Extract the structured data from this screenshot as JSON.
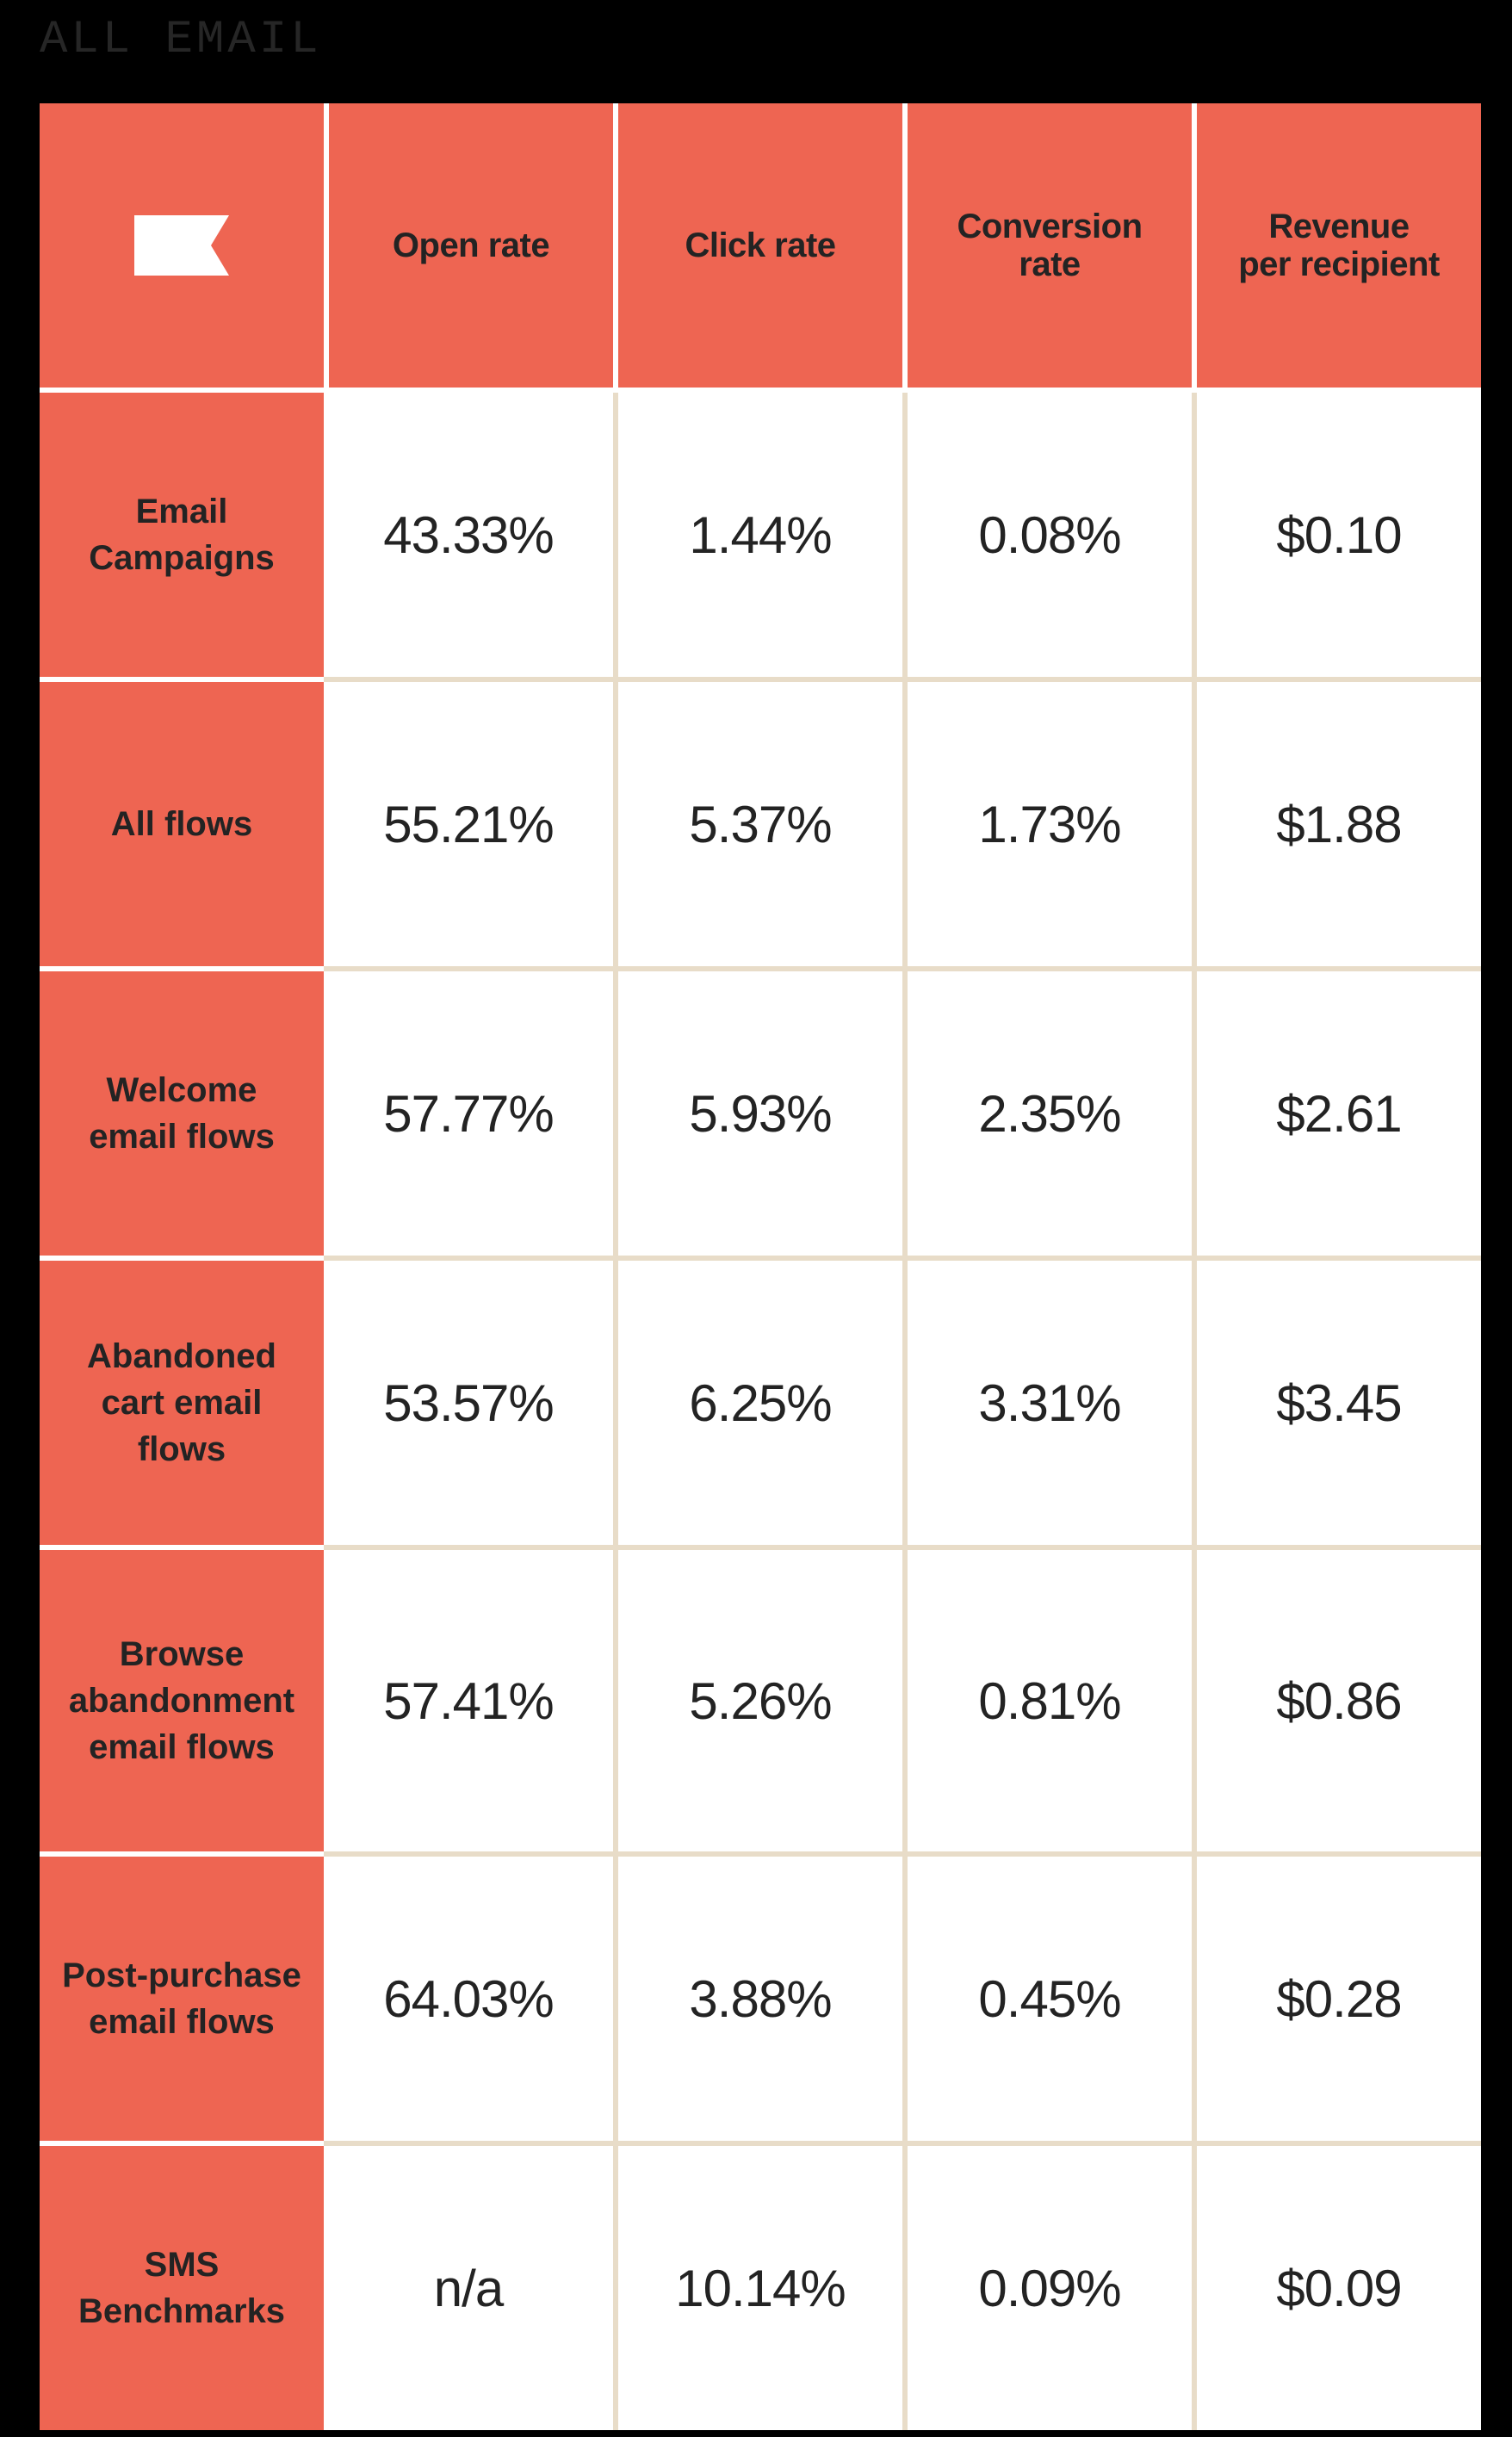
{
  "title": "ALL EMAIL",
  "colors": {
    "header_bg": "#EE6552",
    "cell_bg": "#FFFFFF",
    "grid_line": "#E8DCC8",
    "text": "#232323",
    "page_bg": "#000000"
  },
  "logo": {
    "icon": "flag-logo-icon"
  },
  "headers": [
    "Open rate",
    "Click rate",
    "Conversion rate",
    "Revenue per recipient"
  ],
  "header_lines": [
    [
      "Open rate"
    ],
    [
      "Click rate"
    ],
    [
      "Conversion",
      "rate"
    ],
    [
      "Revenue",
      "per recipient"
    ]
  ],
  "rows": [
    {
      "label": "Email Campaigns",
      "label_lines": [
        "Email",
        "Campaigns"
      ],
      "values": [
        "43.33%",
        "1.44%",
        "0.08%",
        "$0.10"
      ]
    },
    {
      "label": "All flows",
      "label_lines": [
        "All flows"
      ],
      "values": [
        "55.21%",
        "5.37%",
        "1.73%",
        "$1.88"
      ]
    },
    {
      "label": "Welcome email flows",
      "label_lines": [
        "Welcome",
        "email flows"
      ],
      "values": [
        "57.77%",
        "5.93%",
        "2.35%",
        "$2.61"
      ]
    },
    {
      "label": "Abandoned cart email flows",
      "label_lines": [
        "Abandoned",
        "cart email",
        "flows"
      ],
      "values": [
        "53.57%",
        "6.25%",
        "3.31%",
        "$3.45"
      ]
    },
    {
      "label": "Browse abandonment email flows",
      "label_lines": [
        "Browse",
        "abandonment",
        "email flows"
      ],
      "values": [
        "57.41%",
        "5.26%",
        "0.81%",
        "$0.86"
      ]
    },
    {
      "label": "Post-purchase email flows",
      "label_lines": [
        "Post-purchase",
        "email flows"
      ],
      "values": [
        "64.03%",
        "3.88%",
        "0.45%",
        "$0.28"
      ]
    },
    {
      "label": "SMS Benchmarks",
      "label_lines": [
        "SMS",
        "Benchmarks"
      ],
      "values": [
        "n/a",
        "10.14%",
        "0.09%",
        "$0.09"
      ]
    }
  ],
  "chart_data": {
    "type": "table",
    "title": "ALL EMAIL",
    "columns": [
      "Open rate",
      "Click rate",
      "Conversion rate",
      "Revenue per recipient"
    ],
    "rows": [
      {
        "name": "Email Campaigns",
        "open_rate": 43.33,
        "click_rate": 1.44,
        "conversion_rate": 0.08,
        "revenue_per_recipient": 0.1
      },
      {
        "name": "All flows",
        "open_rate": 55.21,
        "click_rate": 5.37,
        "conversion_rate": 1.73,
        "revenue_per_recipient": 1.88
      },
      {
        "name": "Welcome email flows",
        "open_rate": 57.77,
        "click_rate": 5.93,
        "conversion_rate": 2.35,
        "revenue_per_recipient": 2.61
      },
      {
        "name": "Abandoned cart email flows",
        "open_rate": 53.57,
        "click_rate": 6.25,
        "conversion_rate": 3.31,
        "revenue_per_recipient": 3.45
      },
      {
        "name": "Browse abandonment email flows",
        "open_rate": 57.41,
        "click_rate": 5.26,
        "conversion_rate": 0.81,
        "revenue_per_recipient": 0.86
      },
      {
        "name": "Post-purchase email flows",
        "open_rate": 64.03,
        "click_rate": 3.88,
        "conversion_rate": 0.45,
        "revenue_per_recipient": 0.28
      },
      {
        "name": "SMS Benchmarks",
        "open_rate": null,
        "click_rate": 10.14,
        "conversion_rate": 0.09,
        "revenue_per_recipient": 0.09
      }
    ],
    "units": {
      "open_rate": "%",
      "click_rate": "%",
      "conversion_rate": "%",
      "revenue_per_recipient": "$"
    }
  }
}
